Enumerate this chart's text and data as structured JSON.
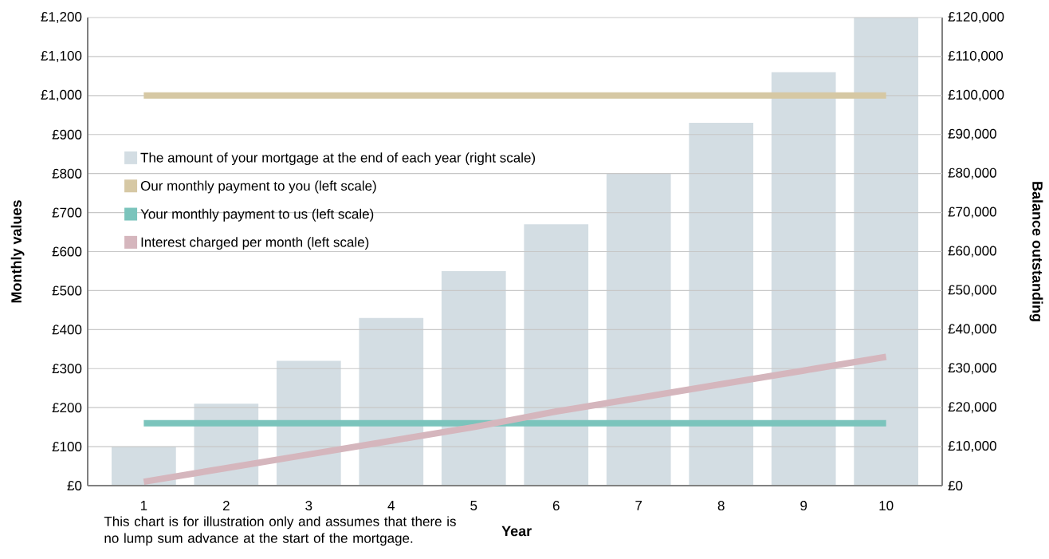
{
  "chart_data": {
    "type": "bar",
    "xlabel": "Year",
    "ylabel": "Monthly values",
    "y2label": "Balance outstanding",
    "categories": [
      "1",
      "2",
      "3",
      "4",
      "5",
      "6",
      "7",
      "8",
      "9",
      "10"
    ],
    "series": [
      {
        "name": "The amount of your mortgage at the end of each year (right scale)",
        "axis": "y2",
        "color": "#d3dde3",
        "values": [
          10000,
          21000,
          32000,
          43000,
          55000,
          67000,
          80000,
          93000,
          106000,
          120000
        ]
      },
      {
        "name": "Our monthly payment to you (left scale)",
        "type": "line",
        "color": "#d6c8a4",
        "values": [
          1000,
          1000,
          1000,
          1000,
          1000,
          1000,
          1000,
          1000,
          1000,
          1000
        ]
      },
      {
        "name": "Your monthly payment to us (left scale)",
        "type": "line",
        "color": "#7bc4bc",
        "values": [
          160,
          160,
          160,
          160,
          160,
          160,
          160,
          160,
          160,
          160
        ]
      },
      {
        "name": "Interest charged per month (left scale)",
        "type": "line",
        "color": "#d5b6bd",
        "values": [
          10,
          45,
          80,
          115,
          150,
          190,
          225,
          260,
          295,
          330
        ]
      }
    ],
    "ylim": [
      0,
      1200
    ],
    "yticks": [
      {
        "value": 0,
        "label": "£0"
      },
      {
        "value": 100,
        "label": "£100"
      },
      {
        "value": 200,
        "label": "£200"
      },
      {
        "value": 300,
        "label": "£300"
      },
      {
        "value": 400,
        "label": "£400"
      },
      {
        "value": 500,
        "label": "£500"
      },
      {
        "value": 600,
        "label": "£600"
      },
      {
        "value": 700,
        "label": "£700"
      },
      {
        "value": 800,
        "label": "£800"
      },
      {
        "value": 900,
        "label": "£900"
      },
      {
        "value": 1000,
        "label": "£1,000"
      },
      {
        "value": 1100,
        "label": "£1,100"
      },
      {
        "value": 1200,
        "label": "£1,200"
      }
    ],
    "y2lim": [
      0,
      120000
    ],
    "y2ticks": [
      {
        "value": 0,
        "label": "£0"
      },
      {
        "value": 10000,
        "label": "£10,000"
      },
      {
        "value": 20000,
        "label": "£20,000"
      },
      {
        "value": 30000,
        "label": "£30,000"
      },
      {
        "value": 40000,
        "label": "£40,000"
      },
      {
        "value": 50000,
        "label": "£50,000"
      },
      {
        "value": 60000,
        "label": "£60,000"
      },
      {
        "value": 70000,
        "label": "£70,000"
      },
      {
        "value": 80000,
        "label": "£80,000"
      },
      {
        "value": 90000,
        "label": "£90,000"
      },
      {
        "value": 100000,
        "label": "£100,000"
      },
      {
        "value": 110000,
        "label": "£110,000"
      },
      {
        "value": 120000,
        "label": "£120,000"
      }
    ],
    "grid": "y",
    "legend": "top left",
    "line_style": "solid",
    "marker": "none",
    "annotations": [
      "This chart is for illustration only and assumes that there is no lump sum advance at the start of the mortgage."
    ]
  }
}
